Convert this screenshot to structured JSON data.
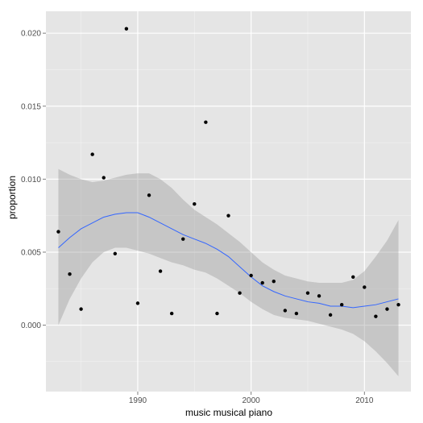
{
  "chart_data": {
    "type": "scatter",
    "title": "",
    "xlabel": "music musical piano",
    "ylabel": "proportion",
    "xlim": [
      1981.9,
      2014.1
    ],
    "ylim": [
      -0.00455,
      0.0215
    ],
    "x_ticks": [
      1990,
      2000,
      2010
    ],
    "x_tick_labels": [
      "1990",
      "2000",
      "2010"
    ],
    "y_ticks": [
      0,
      0.005,
      0.01,
      0.015,
      0.02
    ],
    "y_tick_labels": [
      "0.000",
      "0.005",
      "0.010",
      "0.015",
      "0.020"
    ],
    "grid": true,
    "legend": "none",
    "colors": {
      "panel_background": "#e5e5e5",
      "grid_major": "#ffffff",
      "grid_minor": "#f2f2f2",
      "points": "#000000",
      "smooth_line": "#3366ff",
      "confidence_band": "#999999"
    },
    "points": [
      {
        "x": 1983,
        "y": 0.0064
      },
      {
        "x": 1984,
        "y": 0.0035
      },
      {
        "x": 1985,
        "y": 0.0011
      },
      {
        "x": 1986,
        "y": 0.0117
      },
      {
        "x": 1987,
        "y": 0.0101
      },
      {
        "x": 1988,
        "y": 0.0049
      },
      {
        "x": 1989,
        "y": 0.0203
      },
      {
        "x": 1990,
        "y": 0.0015
      },
      {
        "x": 1991,
        "y": 0.0089
      },
      {
        "x": 1992,
        "y": 0.0037
      },
      {
        "x": 1993,
        "y": 0.0008
      },
      {
        "x": 1994,
        "y": 0.0059
      },
      {
        "x": 1995,
        "y": 0.0083
      },
      {
        "x": 1996,
        "y": 0.0139
      },
      {
        "x": 1997,
        "y": 0.0008
      },
      {
        "x": 1998,
        "y": 0.0075
      },
      {
        "x": 1999,
        "y": 0.0022
      },
      {
        "x": 2000,
        "y": 0.0034
      },
      {
        "x": 2001,
        "y": 0.0029
      },
      {
        "x": 2002,
        "y": 0.003
      },
      {
        "x": 2003,
        "y": 0.001
      },
      {
        "x": 2004,
        "y": 0.0008
      },
      {
        "x": 2005,
        "y": 0.0022
      },
      {
        "x": 2006,
        "y": 0.002
      },
      {
        "x": 2007,
        "y": 0.0007
      },
      {
        "x": 2008,
        "y": 0.0014
      },
      {
        "x": 2009,
        "y": 0.0033
      },
      {
        "x": 2010,
        "y": 0.0026
      },
      {
        "x": 2011,
        "y": 0.0006
      },
      {
        "x": 2012,
        "y": 0.0011
      },
      {
        "x": 2013,
        "y": 0.0014
      }
    ],
    "smooth": [
      {
        "x": 1983,
        "y": 0.0053,
        "lower": 0.0,
        "upper": 0.0107
      },
      {
        "x": 1984,
        "y": 0.006,
        "lower": 0.0018,
        "upper": 0.0103
      },
      {
        "x": 1985,
        "y": 0.0066,
        "lower": 0.0032,
        "upper": 0.01
      },
      {
        "x": 1986,
        "y": 0.007,
        "lower": 0.0043,
        "upper": 0.0098
      },
      {
        "x": 1987,
        "y": 0.0074,
        "lower": 0.005,
        "upper": 0.0099
      },
      {
        "x": 1988,
        "y": 0.0076,
        "lower": 0.0053,
        "upper": 0.0101
      },
      {
        "x": 1989,
        "y": 0.0077,
        "lower": 0.0053,
        "upper": 0.0103
      },
      {
        "x": 1990,
        "y": 0.0077,
        "lower": 0.0051,
        "upper": 0.0104
      },
      {
        "x": 1991,
        "y": 0.0074,
        "lower": 0.0049,
        "upper": 0.0104
      },
      {
        "x": 1992,
        "y": 0.007,
        "lower": 0.0046,
        "upper": 0.01
      },
      {
        "x": 1993,
        "y": 0.0066,
        "lower": 0.0043,
        "upper": 0.0094
      },
      {
        "x": 1994,
        "y": 0.0062,
        "lower": 0.0041,
        "upper": 0.0086
      },
      {
        "x": 1995,
        "y": 0.0059,
        "lower": 0.0038,
        "upper": 0.0079
      },
      {
        "x": 1996,
        "y": 0.0056,
        "lower": 0.0036,
        "upper": 0.0074
      },
      {
        "x": 1997,
        "y": 0.0052,
        "lower": 0.0032,
        "upper": 0.0069
      },
      {
        "x": 1998,
        "y": 0.0047,
        "lower": 0.0027,
        "upper": 0.0063
      },
      {
        "x": 1999,
        "y": 0.004,
        "lower": 0.0022,
        "upper": 0.0057
      },
      {
        "x": 2000,
        "y": 0.0033,
        "lower": 0.0016,
        "upper": 0.005
      },
      {
        "x": 2001,
        "y": 0.0027,
        "lower": 0.0011,
        "upper": 0.0043
      },
      {
        "x": 2002,
        "y": 0.0023,
        "lower": 0.0007,
        "upper": 0.0038
      },
      {
        "x": 2003,
        "y": 0.002,
        "lower": 0.0005,
        "upper": 0.0034
      },
      {
        "x": 2004,
        "y": 0.0018,
        "lower": 0.0004,
        "upper": 0.0032
      },
      {
        "x": 2005,
        "y": 0.0016,
        "lower": 0.0003,
        "upper": 0.003
      },
      {
        "x": 2006,
        "y": 0.0015,
        "lower": 0.0001,
        "upper": 0.0029
      },
      {
        "x": 2007,
        "y": 0.0013,
        "lower": -0.0001,
        "upper": 0.0029
      },
      {
        "x": 2008,
        "y": 0.0013,
        "lower": -0.0003,
        "upper": 0.0029
      },
      {
        "x": 2009,
        "y": 0.0012,
        "lower": -0.0006,
        "upper": 0.0031
      },
      {
        "x": 2010,
        "y": 0.0013,
        "lower": -0.0011,
        "upper": 0.0037
      },
      {
        "x": 2011,
        "y": 0.0014,
        "lower": -0.0018,
        "upper": 0.0047
      },
      {
        "x": 2012,
        "y": 0.0016,
        "lower": -0.0026,
        "upper": 0.0058
      },
      {
        "x": 2013,
        "y": 0.0018,
        "lower": -0.0035,
        "upper": 0.0072
      }
    ]
  }
}
